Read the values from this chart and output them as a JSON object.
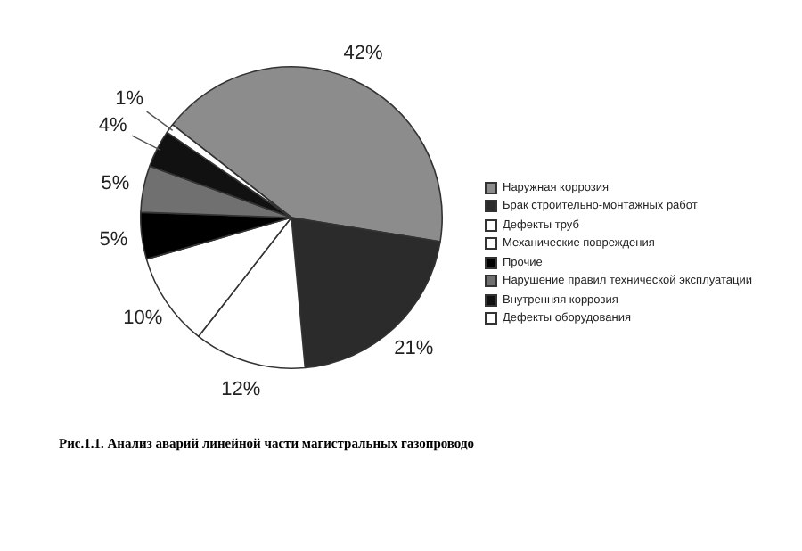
{
  "chart_data": {
    "type": "pie",
    "categories": [
      "Наружная коррозия",
      "Брак строительно-монтажных работ",
      "Дефекты труб",
      "Механические повреждения",
      "Прочие",
      "Нарушение правил технической эксплуатации",
      "Внутренняя коррозия",
      "Дефекты оборудования"
    ],
    "values": [
      42,
      21,
      12,
      10,
      5,
      5,
      4,
      1
    ],
    "value_labels": [
      "42%",
      "21%",
      "12%",
      "10%",
      "5%",
      "5%",
      "4%",
      "1%"
    ],
    "colors": [
      "#8c8c8c",
      "#2b2b2b",
      "#ffffff",
      "#ffffff",
      "#000000",
      "#707070",
      "#111111",
      "#ffffff"
    ],
    "legend": "right",
    "annotations": [
      "Рис.1.1. Анализ аварий линейной части магистральных газопроводо"
    ]
  }
}
